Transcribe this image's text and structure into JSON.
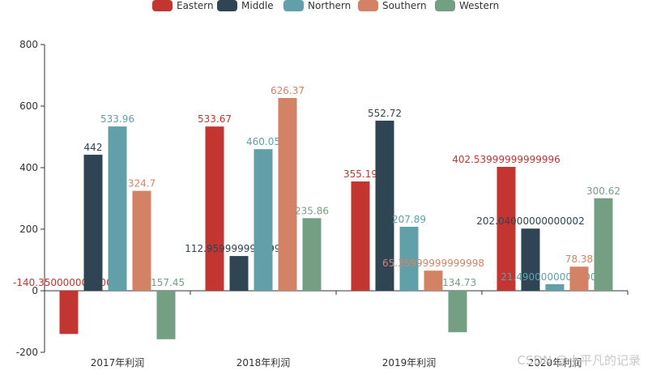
{
  "chart_data": {
    "type": "bar",
    "categories": [
      "2017年利润",
      "2018年利润",
      "2019年利润",
      "2020年利润"
    ],
    "series": [
      {
        "name": "Eastern",
        "color": "#c23531",
        "values": [
          -140.35000000000002,
          533.67,
          355.19,
          402.53999999999996
        ],
        "labels": [
          "-140.35000000000002",
          "533.67",
          "355.19",
          "402.53999999999996"
        ]
      },
      {
        "name": "Middle",
        "color": "#2f4554",
        "values": [
          442,
          112.96,
          552.72,
          202.04000000000002
        ],
        "labels": [
          "442",
          "112.95999999999999",
          "552.72",
          "202.04000000000002"
        ]
      },
      {
        "name": "Northern",
        "color": "#61a0a8",
        "values": [
          533.96,
          460.05,
          207.89,
          21.490000000000002
        ],
        "labels": [
          "533.96",
          "460.05",
          "207.89",
          "21.490000000000002"
        ]
      },
      {
        "name": "Southern",
        "color": "#d48265",
        "values": [
          324.7,
          626.37,
          65.35999999999999,
          78.38
        ],
        "labels": [
          "324.7",
          "626.37",
          "65.35999999999998",
          "78.38"
        ]
      },
      {
        "name": "Western",
        "color": "#749f83",
        "values": [
          -157.45,
          235.86,
          -134.73,
          300.62
        ],
        "labels": [
          "-157.45",
          "235.86",
          "-134.73",
          "300.62"
        ]
      }
    ],
    "yticks": [
      "-200",
      "0",
      "200",
      "400",
      "600",
      "800"
    ],
    "ylim": [
      -200,
      800
    ],
    "legend_position": "top-center",
    "grid": false
  },
  "watermark": "CSDN @小平凡的记录"
}
